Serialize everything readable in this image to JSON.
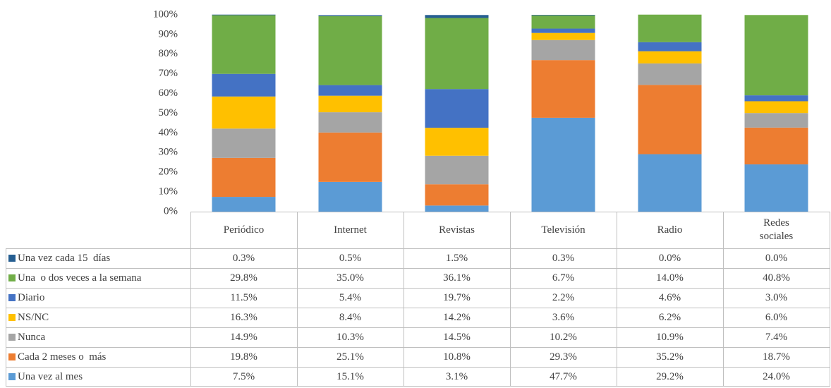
{
  "chart_data": {
    "type": "stacked_bar",
    "categories": [
      "Periódico",
      "Internet",
      "Revistas",
      "Televisión",
      "Radio",
      "Redes sociales"
    ],
    "series": [
      {
        "name": "Una vez cada 15  días",
        "color": "#255e91",
        "values": [
          0.3,
          0.5,
          1.5,
          0.3,
          0.0,
          0.0
        ],
        "value_labels": [
          "0.3%",
          "0.5%",
          "1.5%",
          "0.3%",
          "0.0%",
          "0.0%"
        ]
      },
      {
        "name": "Una  o dos veces a la semana",
        "color": "#70ad47",
        "values": [
          29.8,
          35.0,
          36.1,
          6.7,
          14.0,
          40.8
        ],
        "value_labels": [
          "29.8%",
          "35.0%",
          "36.1%",
          "6.7%",
          "14.0%",
          "40.8%"
        ]
      },
      {
        "name": "Diario",
        "color": "#4472c4",
        "values": [
          11.5,
          5.4,
          19.7,
          2.2,
          4.6,
          3.0
        ],
        "value_labels": [
          "11.5%",
          "5.4%",
          "19.7%",
          "2.2%",
          "4.6%",
          "3.0%"
        ]
      },
      {
        "name": "NS/NC",
        "color": "#ffc000",
        "values": [
          16.3,
          8.4,
          14.2,
          3.6,
          6.2,
          6.0
        ],
        "value_labels": [
          "16.3%",
          "8.4%",
          "14.2%",
          "3.6%",
          "6.2%",
          "6.0%"
        ]
      },
      {
        "name": "Nunca",
        "color": "#a5a5a5",
        "values": [
          14.9,
          10.3,
          14.5,
          10.2,
          10.9,
          7.4
        ],
        "value_labels": [
          "14.9%",
          "10.3%",
          "14.5%",
          "10.2%",
          "10.9%",
          "7.4%"
        ]
      },
      {
        "name": "Cada 2 meses o  más",
        "color": "#ed7d31",
        "values": [
          19.8,
          25.1,
          10.8,
          29.3,
          35.2,
          18.7
        ],
        "value_labels": [
          "19.8%",
          "25.1%",
          "10.8%",
          "29.3%",
          "35.2%",
          "18.7%"
        ]
      },
      {
        "name": "Una vez al mes",
        "color": "#5b9bd5",
        "values": [
          7.5,
          15.1,
          3.1,
          47.7,
          29.2,
          24.0
        ],
        "value_labels": [
          "7.5%",
          "15.1%",
          "3.1%",
          "47.7%",
          "29.2%",
          "24.0%"
        ]
      }
    ],
    "ylim": [
      0,
      100
    ],
    "yticks": [
      {
        "value": 0,
        "label": "0%"
      },
      {
        "value": 10,
        "label": "10%"
      },
      {
        "value": 20,
        "label": "20%"
      },
      {
        "value": 30,
        "label": "30%"
      },
      {
        "value": 40,
        "label": "40%"
      },
      {
        "value": 50,
        "label": "50%"
      },
      {
        "value": 60,
        "label": "60%"
      },
      {
        "value": 70,
        "label": "70%"
      },
      {
        "value": 80,
        "label": "80%"
      },
      {
        "value": 90,
        "label": "90%"
      },
      {
        "value": 100,
        "label": "100%"
      }
    ],
    "grid": false
  }
}
